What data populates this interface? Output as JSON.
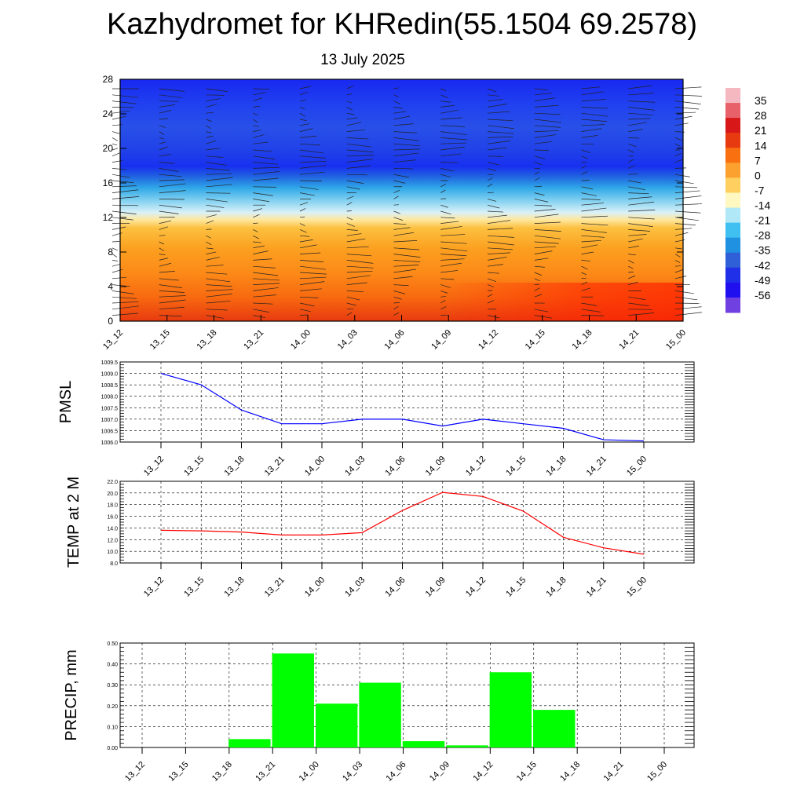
{
  "title": "Kazhydromet for KHRedin(55.1504 69.2578)",
  "subtitle": "13 July 2025",
  "time_labels": [
    "13_12",
    "13_15",
    "13_18",
    "13_21",
    "14_00",
    "14_03",
    "14_06",
    "14_09",
    "14_12",
    "14_15",
    "14_18",
    "14_21",
    "15_00"
  ],
  "colors": {
    "pmsl_line": "#0000ff",
    "temp_line": "#ff0000",
    "precip_bar": "#00ff00"
  },
  "chart_data": [
    {
      "type": "heatmap",
      "title": "",
      "y_ticks": [
        "0",
        "4",
        "8",
        "12",
        "16",
        "20",
        "24",
        "28"
      ],
      "ylim": [
        0,
        28
      ],
      "x": [
        "13_12",
        "13_15",
        "13_18",
        "13_21",
        "14_00",
        "14_03",
        "14_06",
        "14_09",
        "14_12",
        "14_15",
        "14_18",
        "14_21",
        "15_00"
      ],
      "overlay": "wind barbs",
      "colorbar_labels": [
        "35",
        "28",
        "21",
        "14",
        "7",
        "0",
        "-7",
        "-14",
        "-21",
        "-28",
        "-35",
        "-42",
        "-49",
        "-56"
      ],
      "colorbar_colors": [
        "#f5b8c0",
        "#e8606a",
        "#d81818",
        "#e83a10",
        "#f87010",
        "#fca030",
        "#ffd060",
        "#fff8c0",
        "#b0e8f8",
        "#40c0f0",
        "#2090e0",
        "#3060d8",
        "#2030e8",
        "#2010f0",
        "#7040e0"
      ]
    },
    {
      "type": "line",
      "ylabel": "PMSL",
      "x": [
        "13_12",
        "13_15",
        "13_18",
        "13_21",
        "14_00",
        "14_03",
        "14_06",
        "14_09",
        "14_12",
        "14_15",
        "14_18",
        "14_21",
        "15_00"
      ],
      "values": [
        1009.0,
        1008.5,
        1007.4,
        1006.8,
        1006.8,
        1007.0,
        1007.0,
        1006.7,
        1007.0,
        1006.8,
        1006.6,
        1006.1,
        1006.05
      ],
      "y_ticks": [
        "1006.0",
        "1006.5",
        "1007.0",
        "1007.5",
        "1008.0",
        "1008.5",
        "1009.0",
        "1009.5"
      ],
      "ylim": [
        1006.0,
        1009.5
      ],
      "grid": true
    },
    {
      "type": "line",
      "ylabel": "TEMP at 2 M",
      "x": [
        "13_12",
        "13_15",
        "13_18",
        "13_21",
        "14_00",
        "14_03",
        "14_06",
        "14_09",
        "14_12",
        "14_15",
        "14_18",
        "14_21",
        "15_00"
      ],
      "values": [
        13.6,
        13.5,
        13.3,
        12.8,
        12.8,
        13.2,
        17.0,
        20.1,
        19.4,
        16.9,
        12.4,
        10.6,
        9.5
      ],
      "y_ticks": [
        "8.0",
        "10.0",
        "12.0",
        "14.0",
        "16.0",
        "18.0",
        "20.0",
        "22.0"
      ],
      "ylim": [
        8.0,
        22.0
      ],
      "grid": true
    },
    {
      "type": "bar",
      "ylabel": "PRECIP, mm",
      "categories": [
        "13_12",
        "13_15",
        "13_18",
        "13_21",
        "14_00",
        "14_03",
        "14_06",
        "14_09",
        "14_12",
        "14_15",
        "14_18",
        "14_21",
        "15_00"
      ],
      "values": [
        0,
        0,
        0.04,
        0.45,
        0.21,
        0.31,
        0.03,
        0.01,
        0.36,
        0.18,
        0,
        0,
        0
      ],
      "y_ticks": [
        "0.00",
        "0.10",
        "0.20",
        "0.30",
        "0.40",
        "0.50"
      ],
      "ylim": [
        0,
        0.5
      ],
      "grid": true
    }
  ]
}
